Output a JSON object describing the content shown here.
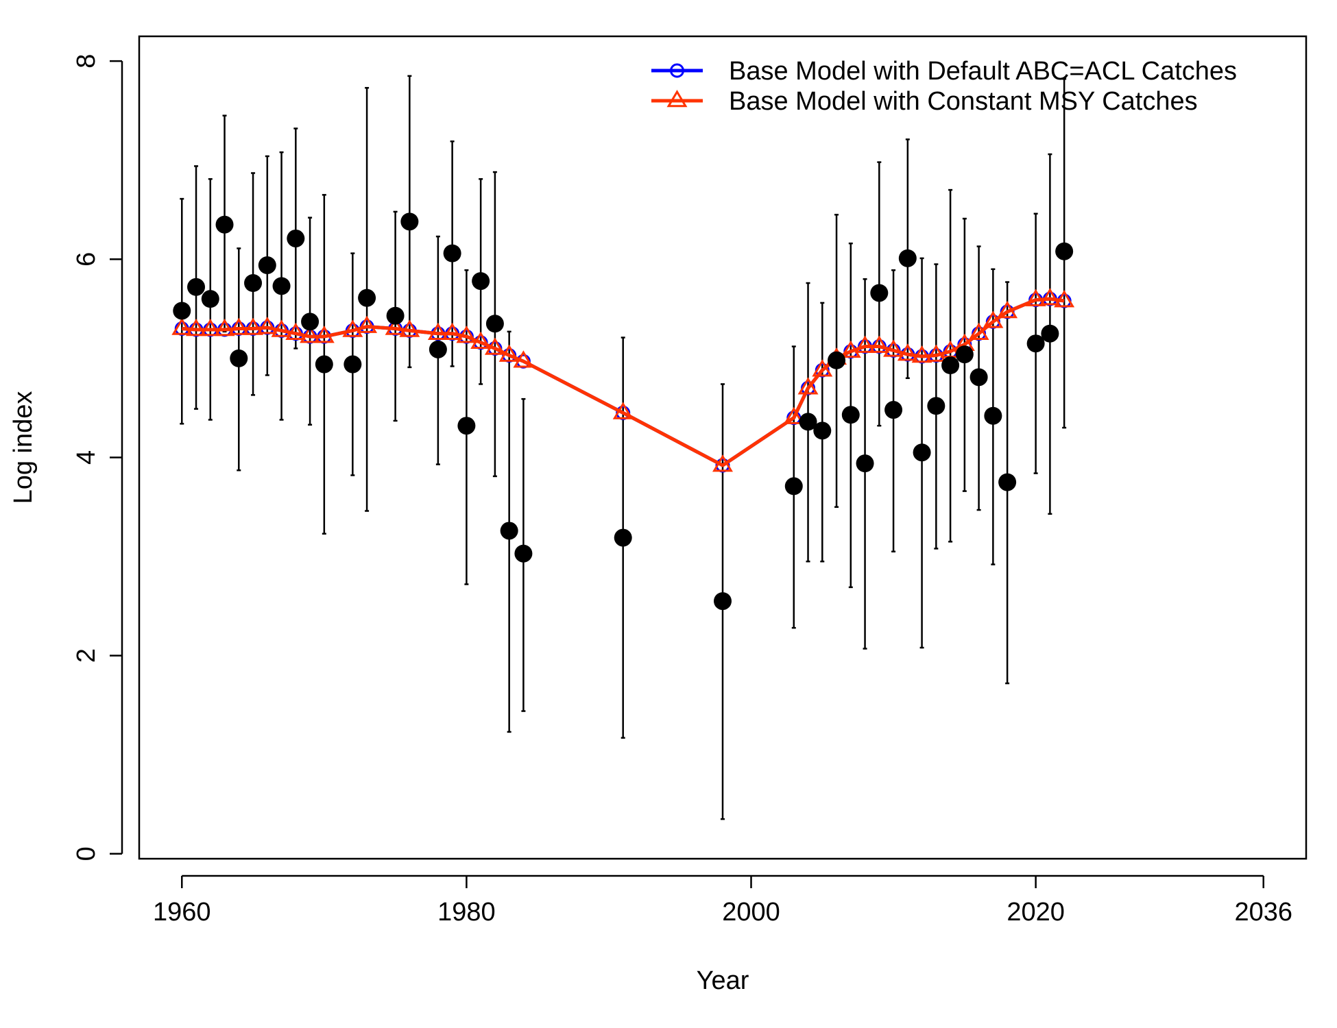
{
  "chart_data": {
    "type": "line",
    "xlabel": "Year",
    "ylabel": "Log index",
    "xlim": [
      1957,
      2039
    ],
    "ylim": [
      -0.05,
      8.25
    ],
    "x_ticks": [
      1960,
      1980,
      2000,
      2020,
      2036
    ],
    "x_tick_labels": [
      "1960",
      "1980",
      "2000",
      "2020",
      "2036"
    ],
    "y_ticks": [
      0,
      2,
      4,
      6,
      8
    ],
    "y_tick_labels": [
      "0",
      "2",
      "4",
      "6",
      "8"
    ],
    "legend_position": "top-right",
    "colors": {
      "base_default": "#0000ff",
      "base_msy": "#ff3300",
      "observed": "#000000"
    },
    "observed": {
      "x": [
        1960,
        1961,
        1962,
        1963,
        1964,
        1965,
        1966,
        1967,
        1968,
        1969,
        1970,
        1972,
        1973,
        1975,
        1976,
        1978,
        1979,
        1980,
        1981,
        1982,
        1983,
        1984,
        1991,
        1998,
        2003,
        2004,
        2005,
        2006,
        2007,
        2008,
        2009,
        2010,
        2011,
        2012,
        2013,
        2014,
        2015,
        2016,
        2017,
        2018,
        2020,
        2021,
        2022
      ],
      "y": [
        5.48,
        5.72,
        5.6,
        6.35,
        5.0,
        5.76,
        5.94,
        5.73,
        6.21,
        5.37,
        4.94,
        4.94,
        5.61,
        5.43,
        6.38,
        5.09,
        6.06,
        4.32,
        5.78,
        5.35,
        3.26,
        3.03,
        3.19,
        2.55,
        3.71,
        4.36,
        4.27,
        4.98,
        4.43,
        3.94,
        5.66,
        4.48,
        6.01,
        4.05,
        4.52,
        4.93,
        5.04,
        4.81,
        4.42,
        3.75,
        5.15,
        5.25,
        6.08
      ],
      "lo": [
        4.34,
        4.49,
        4.38,
        5.27,
        3.87,
        4.63,
        4.83,
        4.38,
        5.1,
        4.33,
        3.23,
        3.82,
        3.46,
        4.37,
        4.91,
        3.93,
        4.92,
        2.72,
        4.74,
        3.81,
        1.23,
        1.44,
        1.17,
        0.35,
        2.28,
        2.95,
        2.95,
        3.5,
        2.69,
        2.07,
        4.32,
        3.05,
        4.8,
        2.08,
        3.08,
        3.15,
        3.66,
        3.47,
        2.92,
        1.72,
        3.84,
        3.43,
        4.3
      ],
      "hi": [
        6.61,
        6.94,
        6.81,
        7.45,
        6.11,
        6.87,
        7.04,
        7.08,
        7.32,
        6.42,
        6.65,
        6.06,
        7.73,
        6.48,
        7.85,
        6.23,
        7.19,
        5.89,
        6.81,
        6.88,
        5.27,
        4.59,
        5.21,
        4.74,
        5.12,
        5.76,
        5.56,
        6.45,
        6.16,
        5.8,
        6.98,
        5.89,
        7.21,
        6.01,
        5.95,
        6.7,
        6.41,
        6.13,
        5.9,
        5.77,
        6.46,
        7.06,
        7.82
      ]
    },
    "series": [
      {
        "name": "Base Model with Default ABC=ACL Catches",
        "marker": "circle",
        "x": [
          1960,
          1961,
          1962,
          1963,
          1964,
          1965,
          1966,
          1967,
          1968,
          1969,
          1970,
          1972,
          1973,
          1975,
          1976,
          1978,
          1979,
          1980,
          1981,
          1982,
          1983,
          1984,
          1991,
          1998,
          2003,
          2004,
          2005,
          2006,
          2007,
          2008,
          2009,
          2010,
          2011,
          2012,
          2013,
          2014,
          2015,
          2016,
          2017,
          2018,
          2020,
          2021,
          2022
        ],
        "values": [
          5.3,
          5.29,
          5.29,
          5.29,
          5.3,
          5.3,
          5.31,
          5.28,
          5.25,
          5.22,
          5.22,
          5.28,
          5.32,
          5.3,
          5.28,
          5.25,
          5.25,
          5.22,
          5.16,
          5.1,
          5.03,
          4.97,
          4.45,
          3.92,
          4.4,
          4.7,
          4.88,
          5.0,
          5.07,
          5.12,
          5.12,
          5.08,
          5.04,
          5.02,
          5.03,
          5.07,
          5.14,
          5.25,
          5.37,
          5.47,
          5.59,
          5.6,
          5.58
        ]
      },
      {
        "name": "Base Model with Constant MSY Catches",
        "marker": "triangle",
        "x": [
          1960,
          1961,
          1962,
          1963,
          1964,
          1965,
          1966,
          1967,
          1968,
          1969,
          1970,
          1972,
          1973,
          1975,
          1976,
          1978,
          1979,
          1980,
          1981,
          1982,
          1983,
          1984,
          1991,
          1998,
          2003,
          2004,
          2005,
          2006,
          2007,
          2008,
          2009,
          2010,
          2011,
          2012,
          2013,
          2014,
          2015,
          2016,
          2017,
          2018,
          2020,
          2021,
          2022
        ],
        "values": [
          5.3,
          5.29,
          5.29,
          5.29,
          5.3,
          5.3,
          5.31,
          5.28,
          5.25,
          5.22,
          5.22,
          5.28,
          5.32,
          5.3,
          5.28,
          5.25,
          5.25,
          5.22,
          5.16,
          5.1,
          5.03,
          4.97,
          4.45,
          3.92,
          4.4,
          4.7,
          4.88,
          5.0,
          5.07,
          5.12,
          5.12,
          5.08,
          5.04,
          5.02,
          5.03,
          5.07,
          5.14,
          5.25,
          5.37,
          5.47,
          5.59,
          5.6,
          5.58
        ]
      }
    ]
  }
}
